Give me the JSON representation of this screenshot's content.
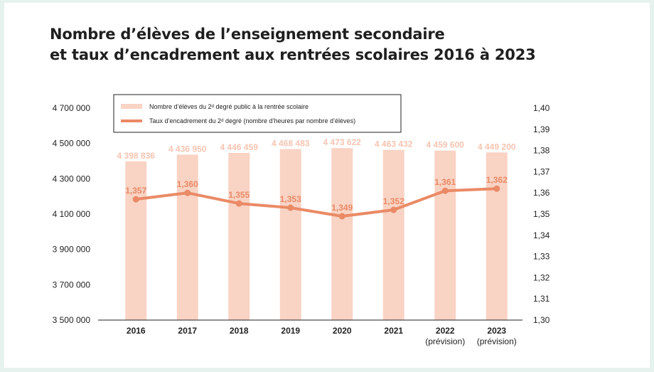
{
  "title_line1": "Nombre d’élèves de l’enseignement secondaire",
  "title_line2": "et taux d’encadrement aux rentrées scolaires 2016 à 2023",
  "colors": {
    "bar": "#f9d3c4",
    "line": "#ea8a66",
    "bar_label": "#f7c4b0",
    "background": "#e6f2ee"
  },
  "chart_data": {
    "type": "bar",
    "categories": [
      "2016",
      "2017",
      "2018",
      "2019",
      "2020",
      "2021",
      "2022",
      "2023"
    ],
    "category_sublabels": [
      "",
      "",
      "",
      "",
      "",
      "",
      "(prévision)",
      "(prévision)"
    ],
    "series": [
      {
        "name": "Nombre d’élèves du 2ᵈ degré public à la rentrée scolaire",
        "type": "bar",
        "axis": "left",
        "values": [
          4398836,
          4436950,
          4446459,
          4468483,
          4473622,
          4463432,
          4459600,
          4449200
        ],
        "labels": [
          "4 398 836",
          "4 436 950",
          "4 446 459",
          "4 468 483",
          "4 473 622",
          "4 463 432",
          "4 459 600",
          "4 449 200"
        ]
      },
      {
        "name": "Taux d’encadrement du 2ᵈ degré  (nombre d’heures par nombre d’élèves)",
        "type": "line",
        "axis": "right",
        "values": [
          1.357,
          1.36,
          1.355,
          1.353,
          1.349,
          1.352,
          1.361,
          1.362
        ],
        "labels": [
          "1,357",
          "1,360",
          "1,355",
          "1,353",
          "1,349",
          "1,352",
          "1,361",
          "1,362"
        ]
      }
    ],
    "y_left": {
      "range": [
        3500000,
        4700000
      ],
      "ticks": [
        3500000,
        3700000,
        3900000,
        4100000,
        4300000,
        4500000,
        4700000
      ],
      "tick_labels": [
        "3 500 000",
        "3 700 000",
        "3 900 000",
        "4 100 000",
        "4 300 000",
        "4 500 000",
        "4 700 000"
      ]
    },
    "y_right": {
      "range": [
        1.3,
        1.4
      ],
      "ticks": [
        1.3,
        1.31,
        1.32,
        1.33,
        1.34,
        1.35,
        1.36,
        1.37,
        1.38,
        1.39,
        1.4
      ],
      "tick_labels": [
        "1,30",
        "1,31",
        "1,32",
        "1,33",
        "1,34",
        "1,35",
        "1,36",
        "1,37",
        "1,38",
        "1,39",
        "1,40"
      ]
    },
    "grid": false,
    "legend": "top-left"
  }
}
